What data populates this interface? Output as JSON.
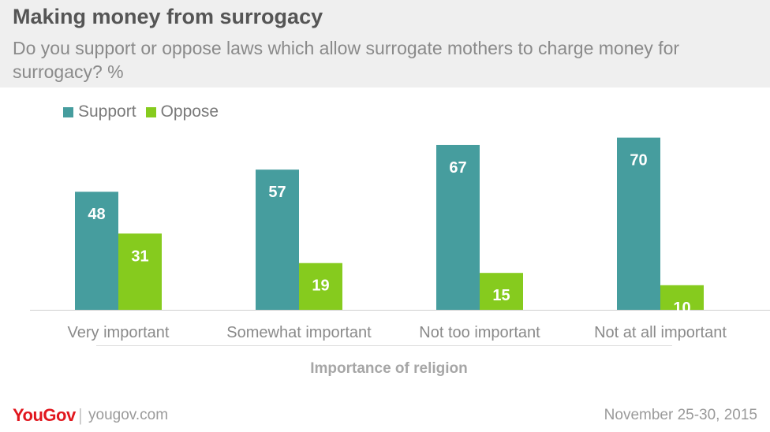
{
  "header": {
    "title": "Making money from surrogacy",
    "subtitle": "Do you support or oppose laws which allow surrogate mothers to charge money for surrogacy? %"
  },
  "colors": {
    "support": "#469d9e",
    "oppose": "#86cb1e",
    "header_bg": "#efefef",
    "brand": "#e1171e"
  },
  "chart_data": {
    "type": "bar",
    "title": "Making money from surrogacy",
    "subtitle": "Do you support or oppose laws which allow surrogate mothers to charge money for surrogacy? %",
    "categories": [
      "Very important",
      "Somewhat important",
      "Not too important",
      "Not at all important"
    ],
    "series": [
      {
        "name": "Support",
        "values": [
          48,
          57,
          67,
          70
        ]
      },
      {
        "name": "Oppose",
        "values": [
          31,
          19,
          15,
          10
        ]
      }
    ],
    "xlabel": "Importance of religion",
    "ylabel": "",
    "ylim": [
      0,
      70
    ],
    "grid": false,
    "data_labels": true,
    "legend_position": "top-left"
  },
  "footer": {
    "brand": "YouGov",
    "separator": "|",
    "site": "yougov.com",
    "date": "November 25-30, 2015"
  }
}
